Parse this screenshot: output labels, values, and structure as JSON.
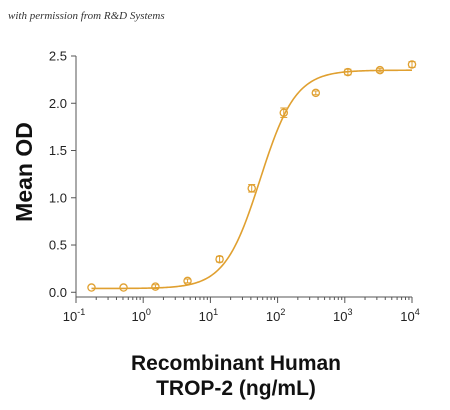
{
  "header": {
    "permission_note": "with permission from R&D Systems"
  },
  "chart_data": {
    "type": "scatter",
    "ylabel": "Mean OD",
    "xlabel_lines": [
      "Recombinant Human",
      "TROP-2 (ng/mL)"
    ],
    "x_scale": "log",
    "xlim": [
      0.1,
      10000
    ],
    "ylim": [
      -0.05,
      2.5
    ],
    "x_ticks": [
      {
        "value": 0.1,
        "base": "10",
        "exp": "-1"
      },
      {
        "value": 1,
        "base": "10",
        "exp": "0"
      },
      {
        "value": 10,
        "base": "10",
        "exp": "1"
      },
      {
        "value": 100,
        "base": "10",
        "exp": "2"
      },
      {
        "value": 1000,
        "base": "10",
        "exp": "3"
      },
      {
        "value": 10000,
        "base": "10",
        "exp": "4"
      }
    ],
    "y_ticks": [
      {
        "value": 0.0,
        "label": "0.0"
      },
      {
        "value": 0.5,
        "label": "0.5"
      },
      {
        "value": 1.0,
        "label": "1.0"
      },
      {
        "value": 1.5,
        "label": "1.5"
      },
      {
        "value": 2.0,
        "label": "2.0"
      },
      {
        "value": 2.5,
        "label": "2.5"
      }
    ],
    "grid": false,
    "legend": "none",
    "color": "#E0A030",
    "points": [
      {
        "x": 0.17,
        "y": 0.05,
        "err": 0.0
      },
      {
        "x": 0.51,
        "y": 0.05,
        "err": 0.0
      },
      {
        "x": 1.52,
        "y": 0.06,
        "err": 0.02
      },
      {
        "x": 4.57,
        "y": 0.12,
        "err": 0.02
      },
      {
        "x": 13.7,
        "y": 0.35,
        "err": 0.03
      },
      {
        "x": 41.2,
        "y": 1.1,
        "err": 0.04
      },
      {
        "x": 123.5,
        "y": 1.9,
        "err": 0.05
      },
      {
        "x": 370,
        "y": 2.11,
        "err": 0.02
      },
      {
        "x": 1111,
        "y": 2.33,
        "err": 0.03
      },
      {
        "x": 3333,
        "y": 2.35,
        "err": 0.02
      },
      {
        "x": 10000,
        "y": 2.41,
        "err": 0.03
      }
    ],
    "fit": {
      "model": "4PL",
      "bottom": 0.04,
      "top": 2.35,
      "ec50": 55,
      "hill": 1.65
    }
  }
}
